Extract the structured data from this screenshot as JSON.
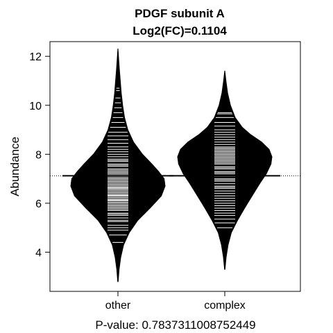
{
  "chart_data": {
    "type": "beanplot",
    "title": "PDGF subunit A",
    "subtitle": "Log2(FC)=0.1104",
    "xlabel": "P-value: 0.7837311008752449",
    "ylabel": "Abundance",
    "ylim": [
      2.4,
      12.6
    ],
    "yticks": [
      4,
      6,
      8,
      10,
      12
    ],
    "overall_line": 7.12,
    "categories": [
      "other",
      "complex"
    ],
    "groups": [
      {
        "name": "other",
        "mean": 7.12,
        "min": 2.8,
        "max": 12.3,
        "density": [
          [
            2.8,
            0.005
          ],
          [
            3.3,
            0.025
          ],
          [
            3.8,
            0.06
          ],
          [
            4.3,
            0.12
          ],
          [
            4.8,
            0.24
          ],
          [
            5.3,
            0.42
          ],
          [
            5.8,
            0.68
          ],
          [
            6.3,
            0.92
          ],
          [
            6.7,
            1.0
          ],
          [
            7.0,
            0.98
          ],
          [
            7.3,
            0.86
          ],
          [
            7.6,
            0.72
          ],
          [
            8.0,
            0.52
          ],
          [
            8.5,
            0.33
          ],
          [
            9.0,
            0.21
          ],
          [
            9.5,
            0.14
          ],
          [
            10.0,
            0.1
          ],
          [
            10.5,
            0.07
          ],
          [
            11.0,
            0.05
          ],
          [
            11.5,
            0.03
          ],
          [
            12.0,
            0.012
          ],
          [
            12.3,
            0.002
          ]
        ],
        "points": [
          4.4,
          4.7,
          4.9,
          5.0,
          5.1,
          5.25,
          5.3,
          5.4,
          5.5,
          5.55,
          5.6,
          5.7,
          5.75,
          5.8,
          5.85,
          5.9,
          5.95,
          6.0,
          6.05,
          6.1,
          6.12,
          6.15,
          6.2,
          6.25,
          6.3,
          6.33,
          6.35,
          6.4,
          6.45,
          6.5,
          6.55,
          6.6,
          6.62,
          6.65,
          6.7,
          6.75,
          6.8,
          6.85,
          6.9,
          6.95,
          7.0,
          7.05,
          7.1,
          7.15,
          7.2,
          7.25,
          7.3,
          7.35,
          7.4,
          7.5,
          7.55,
          7.6,
          7.7,
          7.75,
          7.8,
          7.9,
          8.0,
          8.1,
          8.2,
          8.3,
          8.45,
          8.6,
          8.75,
          8.9,
          9.1,
          9.3,
          9.5,
          9.7,
          9.9,
          10.1,
          10.3,
          10.6,
          10.7
        ]
      },
      {
        "name": "complex",
        "mean": 7.12,
        "min": 3.3,
        "max": 11.4,
        "density": [
          [
            3.3,
            0.005
          ],
          [
            3.8,
            0.03
          ],
          [
            4.3,
            0.07
          ],
          [
            4.8,
            0.14
          ],
          [
            5.3,
            0.27
          ],
          [
            5.8,
            0.42
          ],
          [
            6.3,
            0.58
          ],
          [
            6.8,
            0.74
          ],
          [
            7.2,
            0.88
          ],
          [
            7.6,
            0.98
          ],
          [
            7.9,
            1.0
          ],
          [
            8.2,
            0.94
          ],
          [
            8.5,
            0.78
          ],
          [
            8.8,
            0.55
          ],
          [
            9.1,
            0.37
          ],
          [
            9.5,
            0.22
          ],
          [
            10.0,
            0.12
          ],
          [
            10.5,
            0.06
          ],
          [
            11.0,
            0.025
          ],
          [
            11.4,
            0.002
          ]
        ],
        "points": [
          5.0,
          5.2,
          5.35,
          5.5,
          5.6,
          5.7,
          5.8,
          5.9,
          6.0,
          6.1,
          6.2,
          6.3,
          6.4,
          6.5,
          6.6,
          6.65,
          6.7,
          6.8,
          6.9,
          6.95,
          7.0,
          7.1,
          7.2,
          7.25,
          7.3,
          7.4,
          7.45,
          7.5,
          7.6,
          7.65,
          7.7,
          7.75,
          7.8,
          7.85,
          7.9,
          7.95,
          8.0,
          8.05,
          8.1,
          8.15,
          8.2,
          8.25,
          8.3,
          8.4,
          8.5,
          8.6,
          8.7,
          8.8,
          8.9,
          9.0,
          9.15,
          9.3,
          9.5,
          9.65,
          9.7
        ]
      }
    ]
  }
}
